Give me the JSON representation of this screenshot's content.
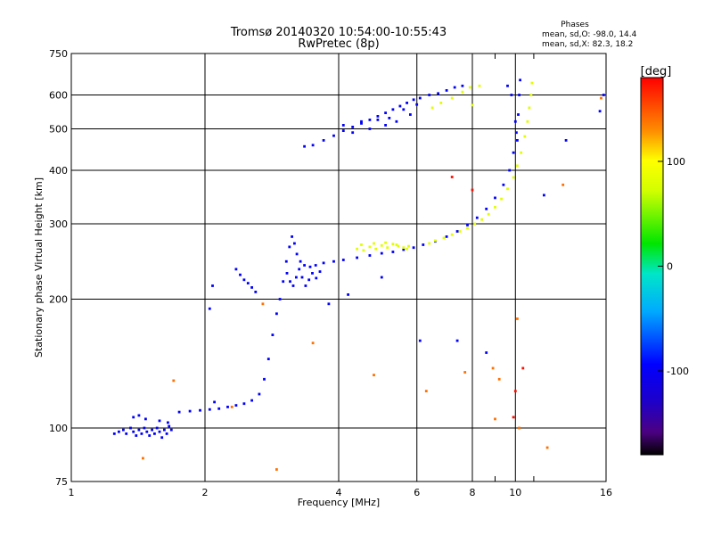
{
  "chart_data": {
    "type": "scatter",
    "title": "Tromsø 20140320 10:54:00-10:55:43",
    "subtitle": "RwPretec (8p)",
    "stats": {
      "heading": "Phases",
      "line_o": "mean, sd,O: -98.0, 14.4",
      "line_x": "mean, sd,X: 82.3, 18.2"
    },
    "xlabel": "Frequency [MHz]",
    "ylabel": "Stationary phase Virtual Height [km]",
    "x_scale": "log",
    "y_scale": "log",
    "xlim": [
      1,
      16
    ],
    "ylim": [
      75,
      750
    ],
    "grid": true,
    "x_major_ticks": [
      1,
      2,
      4,
      6,
      8,
      10,
      16
    ],
    "x_minor_ticks": [
      9,
      11
    ],
    "y_ticks": [
      75,
      100,
      200,
      300,
      400,
      500,
      600,
      750
    ],
    "colorbar": {
      "label": "[deg]",
      "range": [
        -180,
        180
      ],
      "ticks": [
        100,
        0,
        -100
      ]
    },
    "series": [
      {
        "mode": "O",
        "phase": -95,
        "points": [
          [
            1.25,
            97
          ],
          [
            1.28,
            98
          ],
          [
            1.31,
            99
          ],
          [
            1.33,
            97
          ],
          [
            1.36,
            100
          ],
          [
            1.38,
            98
          ],
          [
            1.4,
            96
          ],
          [
            1.42,
            99
          ],
          [
            1.44,
            97
          ],
          [
            1.46,
            100
          ],
          [
            1.48,
            98
          ],
          [
            1.5,
            96
          ],
          [
            1.52,
            99
          ],
          [
            1.54,
            97
          ],
          [
            1.56,
            100
          ],
          [
            1.58,
            98
          ],
          [
            1.6,
            95
          ],
          [
            1.62,
            99
          ],
          [
            1.64,
            97
          ],
          [
            1.66,
            101
          ],
          [
            1.68,
            99
          ],
          [
            1.38,
            106
          ],
          [
            1.42,
            107
          ],
          [
            1.47,
            105
          ],
          [
            1.58,
            104
          ],
          [
            1.65,
            103
          ],
          [
            1.75,
            109
          ],
          [
            1.85,
            109.5
          ],
          [
            1.95,
            110
          ],
          [
            2.05,
            110.5
          ],
          [
            2.15,
            111
          ],
          [
            2.25,
            112
          ],
          [
            2.35,
            113
          ],
          [
            2.45,
            114
          ],
          [
            2.55,
            116
          ],
          [
            2.65,
            120
          ],
          [
            2.72,
            130
          ],
          [
            2.78,
            145
          ],
          [
            2.84,
            165
          ],
          [
            2.9,
            185
          ],
          [
            2.95,
            200
          ],
          [
            3.0,
            220
          ],
          [
            3.05,
            245
          ],
          [
            3.1,
            265
          ],
          [
            3.14,
            280
          ],
          [
            3.18,
            270
          ],
          [
            3.22,
            255
          ],
          [
            3.28,
            245
          ],
          [
            3.35,
            240
          ],
          [
            3.45,
            238
          ],
          [
            3.55,
            240
          ],
          [
            3.7,
            243
          ],
          [
            3.9,
            245
          ],
          [
            4.1,
            247
          ],
          [
            4.4,
            250
          ],
          [
            4.7,
            253
          ],
          [
            5.0,
            256
          ],
          [
            5.3,
            258
          ],
          [
            5.6,
            261
          ],
          [
            5.9,
            264
          ],
          [
            6.2,
            268
          ],
          [
            6.6,
            273
          ],
          [
            7.0,
            280
          ],
          [
            7.4,
            288
          ],
          [
            7.8,
            298
          ],
          [
            8.2,
            310
          ],
          [
            8.6,
            325
          ],
          [
            9.0,
            345
          ],
          [
            9.4,
            370
          ],
          [
            9.7,
            400
          ],
          [
            9.9,
            440
          ],
          [
            10.05,
            490
          ],
          [
            10.15,
            540
          ],
          [
            10.2,
            600
          ],
          [
            10.25,
            650
          ],
          [
            3.06,
            230
          ],
          [
            3.11,
            220
          ],
          [
            3.16,
            215
          ],
          [
            3.21,
            225
          ],
          [
            3.26,
            235
          ],
          [
            3.31,
            225
          ],
          [
            3.37,
            215
          ],
          [
            3.43,
            222
          ],
          [
            3.49,
            230
          ],
          [
            3.56,
            224
          ],
          [
            3.63,
            232
          ],
          [
            2.35,
            235
          ],
          [
            2.4,
            228
          ],
          [
            2.45,
            222
          ],
          [
            2.5,
            218
          ],
          [
            2.55,
            213
          ],
          [
            2.6,
            208
          ],
          [
            3.35,
            455
          ],
          [
            3.5,
            458
          ],
          [
            3.7,
            470
          ],
          [
            3.9,
            482
          ],
          [
            4.1,
            495
          ],
          [
            4.3,
            505
          ],
          [
            4.5,
            515
          ],
          [
            4.7,
            525
          ],
          [
            4.9,
            535
          ],
          [
            5.1,
            545
          ],
          [
            5.3,
            555
          ],
          [
            5.5,
            565
          ],
          [
            5.7,
            575
          ],
          [
            5.9,
            585
          ],
          [
            6.1,
            590
          ],
          [
            6.4,
            600
          ],
          [
            6.7,
            605
          ],
          [
            7.0,
            615
          ],
          [
            7.3,
            625
          ],
          [
            7.6,
            630
          ],
          [
            4.1,
            510
          ],
          [
            4.5,
            520
          ],
          [
            4.9,
            525
          ],
          [
            5.2,
            530
          ],
          [
            5.6,
            555
          ],
          [
            6.0,
            570
          ],
          [
            4.3,
            490
          ],
          [
            4.7,
            500
          ],
          [
            5.1,
            510
          ],
          [
            5.4,
            520
          ],
          [
            5.8,
            540
          ],
          [
            2.1,
            115
          ],
          [
            2.05,
            190
          ],
          [
            2.08,
            215
          ],
          [
            9.6,
            630
          ],
          [
            9.8,
            600
          ],
          [
            10.0,
            520
          ],
          [
            10.1,
            470
          ],
          [
            3.8,
            195
          ],
          [
            4.2,
            205
          ],
          [
            5.0,
            225
          ],
          [
            6.1,
            160
          ],
          [
            7.4,
            160
          ],
          [
            8.6,
            150
          ],
          [
            13.0,
            470
          ],
          [
            15.5,
            550
          ],
          [
            11.6,
            350
          ],
          [
            15.8,
            600
          ]
        ]
      },
      {
        "mode": "X",
        "phase": 82,
        "points": [
          [
            4.4,
            262
          ],
          [
            4.55,
            260
          ],
          [
            4.7,
            265
          ],
          [
            4.85,
            262
          ],
          [
            5.0,
            267
          ],
          [
            5.15,
            264
          ],
          [
            5.3,
            269
          ],
          [
            5.45,
            266
          ],
          [
            5.6,
            264
          ],
          [
            5.75,
            266
          ],
          [
            4.5,
            268
          ],
          [
            4.8,
            270
          ],
          [
            5.1,
            271
          ],
          [
            5.4,
            268
          ],
          [
            5.7,
            262
          ],
          [
            6.4,
            270
          ],
          [
            6.6,
            274
          ],
          [
            6.9,
            278
          ],
          [
            7.2,
            283
          ],
          [
            7.5,
            288
          ],
          [
            7.8,
            293
          ],
          [
            8.1,
            300
          ],
          [
            8.4,
            307
          ],
          [
            8.7,
            316
          ],
          [
            9.0,
            328
          ],
          [
            9.3,
            343
          ],
          [
            9.6,
            362
          ],
          [
            9.9,
            385
          ],
          [
            10.1,
            410
          ],
          [
            10.3,
            440
          ],
          [
            10.5,
            480
          ],
          [
            10.65,
            520
          ],
          [
            10.75,
            560
          ],
          [
            10.85,
            600
          ],
          [
            10.9,
            640
          ],
          [
            6.5,
            560
          ],
          [
            6.8,
            575
          ],
          [
            7.2,
            590
          ],
          [
            7.6,
            610
          ],
          [
            7.9,
            625
          ],
          [
            8.3,
            630
          ],
          [
            8.0,
            568
          ]
        ]
      },
      {
        "mode": "scatter",
        "phase": 140,
        "points": [
          [
            1.45,
            85
          ],
          [
            1.7,
            129
          ],
          [
            2.3,
            112
          ],
          [
            2.7,
            195
          ],
          [
            2.9,
            80
          ],
          [
            3.5,
            158
          ],
          [
            4.8,
            133
          ],
          [
            6.3,
            122
          ],
          [
            7.7,
            135
          ],
          [
            8.9,
            138
          ],
          [
            9.2,
            130
          ],
          [
            10.1,
            180
          ],
          [
            10.2,
            100
          ],
          [
            11.8,
            90
          ],
          [
            12.8,
            370
          ],
          [
            15.6,
            590
          ],
          [
            9.0,
            105
          ]
        ]
      },
      {
        "mode": "scatter",
        "phase": 175,
        "points": [
          [
            7.2,
            386
          ],
          [
            8.0,
            360
          ],
          [
            9.9,
            106
          ],
          [
            10.0,
            122
          ],
          [
            10.4,
            138
          ]
        ]
      }
    ]
  }
}
